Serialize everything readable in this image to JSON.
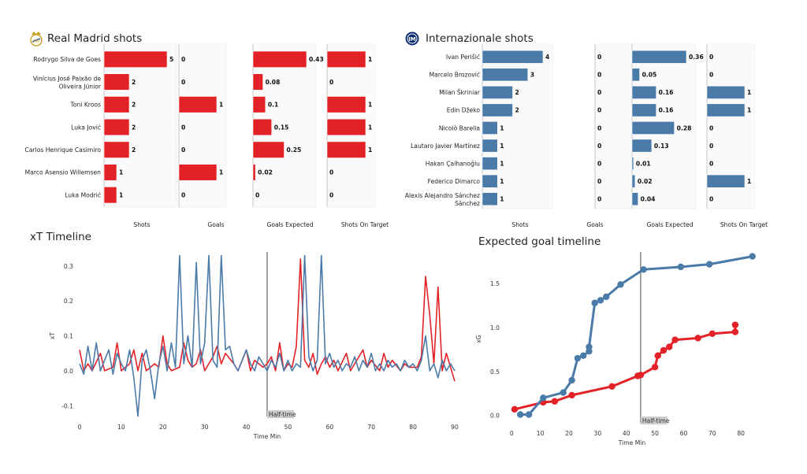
{
  "colors": {
    "real": "#e32228",
    "inter": "#4a7aa8",
    "vline": "#555555",
    "halftime_bg": "#cccccc"
  },
  "icons": {
    "real_logo": "real-madrid-crest-icon",
    "inter_logo": "inter-crest-icon"
  },
  "chart_data": [
    {
      "type": "bar",
      "orientation": "horizontal",
      "title": "Real Madrid shots",
      "columns": [
        "Shots",
        "Goals",
        "Goals Expected",
        "Shots On Target"
      ],
      "players": [
        [
          "Rodrygo Silva de Goes"
        ],
        [
          "Vinícius José Paixão de",
          "Oliveira Júnior"
        ],
        [
          "Toni Kroos"
        ],
        [
          "Luka Jović"
        ],
        [
          "Carlos Henrique Casimiro"
        ],
        [
          "Marco Asensio Willemsen"
        ],
        [
          "Luka Modrić"
        ]
      ],
      "series": [
        {
          "name": "Shots",
          "values": [
            5,
            2,
            2,
            2,
            2,
            1,
            1
          ],
          "labels": [
            "5",
            "2",
            "2",
            "2",
            "2",
            "1",
            "1"
          ]
        },
        {
          "name": "Goals",
          "values": [
            0,
            0,
            1,
            0,
            0,
            1,
            0
          ],
          "labels": [
            "0",
            "0",
            "1",
            "0",
            "0",
            "1",
            "0"
          ]
        },
        {
          "name": "Goals Expected",
          "values": [
            0.43,
            0.08,
            0.1,
            0.15,
            0.25,
            0.02,
            0
          ],
          "labels": [
            "0.43",
            "0.08",
            "0.1",
            "0.15",
            "0.25",
            "0.02",
            "0"
          ]
        },
        {
          "name": "Shots On Target",
          "values": [
            1,
            0,
            1,
            1,
            1,
            0,
            0
          ],
          "labels": [
            "1",
            "0",
            "1",
            "1",
            "1",
            "0",
            "0"
          ]
        }
      ]
    },
    {
      "type": "bar",
      "orientation": "horizontal",
      "title": "Internazionale shots",
      "columns": [
        "Shots",
        "Goals",
        "Goals Expected",
        "Shots On Target"
      ],
      "players": [
        [
          "Ivan Perišić"
        ],
        [
          "Marcelo Brozović"
        ],
        [
          "Milan Škriniar"
        ],
        [
          "Edin Džeko"
        ],
        [
          "Nicolò Barella"
        ],
        [
          "Lautaro Javier Martínez"
        ],
        [
          "Hakan Çalhanoğlu"
        ],
        [
          "Federico Dimarco"
        ],
        [
          "Alexis Alejandro Sánchez",
          "Sánchez"
        ]
      ],
      "series": [
        {
          "name": "Shots",
          "values": [
            4,
            3,
            2,
            2,
            1,
            1,
            1,
            1,
            1
          ],
          "labels": [
            "4",
            "3",
            "2",
            "2",
            "1",
            "1",
            "1",
            "1",
            "1"
          ]
        },
        {
          "name": "Goals",
          "values": [
            0,
            0,
            0,
            0,
            0,
            0,
            0,
            0,
            0
          ],
          "labels": [
            "0",
            "0",
            "0",
            "0",
            "0",
            "0",
            "0",
            "0",
            "0"
          ]
        },
        {
          "name": "Goals Expected",
          "values": [
            0.36,
            0.05,
            0.16,
            0.16,
            0.28,
            0.13,
            0.01,
            0.02,
            0.04
          ],
          "labels": [
            "0.36",
            "0.05",
            "0.16",
            "0.16",
            "0.28",
            "0.13",
            "0.01",
            "0.02",
            "0.04"
          ]
        },
        {
          "name": "Shots On Target",
          "values": [
            0,
            0,
            1,
            1,
            0,
            0,
            0,
            1,
            0
          ],
          "labels": [
            "0",
            "0",
            "1",
            "1",
            "0",
            "0",
            "0",
            "1",
            "0"
          ]
        }
      ]
    },
    {
      "type": "line",
      "title": "xT Timeline",
      "xlabel": "Time Min",
      "ylabel": "xT",
      "xlim": [
        0,
        90
      ],
      "ylim": [
        -0.14,
        0.34
      ],
      "xticks": [
        0,
        10,
        20,
        30,
        40,
        50,
        60,
        70,
        80,
        90
      ],
      "yticks": [
        -0.1,
        0.0,
        0.1,
        0.2,
        0.3
      ],
      "ytick_labels": [
        "-0.1",
        "0.0",
        "0.1",
        "0.2",
        "0.3"
      ],
      "annotation": {
        "x": 45,
        "text": "Half-time"
      },
      "series": [
        {
          "team": "real",
          "points": [
            [
              0,
              0.06
            ],
            [
              1,
              0.0
            ],
            [
              2,
              0.02
            ],
            [
              3,
              0.0
            ],
            [
              5,
              0.05
            ],
            [
              6,
              0.0
            ],
            [
              8,
              0.01
            ],
            [
              9,
              0.08
            ],
            [
              10,
              0.0
            ],
            [
              12,
              0.02
            ],
            [
              13,
              0.06
            ],
            [
              14,
              0.0
            ],
            [
              15,
              0.05
            ],
            [
              16,
              0.0
            ],
            [
              18,
              0.02
            ],
            [
              19,
              0.01
            ],
            [
              20,
              0.1
            ],
            [
              21,
              0.02
            ],
            [
              22,
              0.0
            ],
            [
              24,
              0.01
            ],
            [
              25,
              0.08
            ],
            [
              26,
              0.03
            ],
            [
              27,
              0.01
            ],
            [
              28,
              0.02
            ],
            [
              29,
              0.06
            ],
            [
              30,
              0.0
            ],
            [
              32,
              0.04
            ],
            [
              33,
              0.07
            ],
            [
              34,
              0.02
            ],
            [
              35,
              0.05
            ],
            [
              37,
              0.02
            ],
            [
              38,
              0.0
            ],
            [
              40,
              0.06
            ],
            [
              41,
              0.0
            ],
            [
              42,
              0.03
            ],
            [
              44,
              0.01
            ],
            [
              45,
              0.02
            ],
            [
              46,
              0.04
            ],
            [
              47,
              0.0
            ],
            [
              48,
              0.08
            ],
            [
              49,
              0.0
            ],
            [
              50,
              0.02
            ],
            [
              51,
              0.01
            ],
            [
              52,
              0.07
            ],
            [
              53,
              0.32
            ],
            [
              54,
              0.03
            ],
            [
              55,
              0.01
            ],
            [
              56,
              0.05
            ],
            [
              57,
              -0.01
            ],
            [
              58,
              0.02
            ],
            [
              59,
              0.04
            ],
            [
              60,
              0.01
            ],
            [
              61,
              0.03
            ],
            [
              62,
              0.0
            ],
            [
              64,
              0.05
            ],
            [
              65,
              0.0
            ],
            [
              66,
              0.02
            ],
            [
              68,
              0.06
            ],
            [
              69,
              0.01
            ],
            [
              70,
              0.03
            ],
            [
              72,
              0.0
            ],
            [
              73,
              0.05
            ],
            [
              74,
              0.01
            ],
            [
              75,
              0.03
            ],
            [
              77,
              0.0
            ],
            [
              78,
              0.02
            ],
            [
              79,
              0.01
            ],
            [
              81,
              0.01
            ],
            [
              82,
              0.04
            ],
            [
              83,
              0.27
            ],
            [
              84,
              0.16
            ],
            [
              85,
              0.02
            ],
            [
              86,
              0.24
            ],
            [
              87,
              0.0
            ],
            [
              88,
              0.05
            ],
            [
              89,
              0.01
            ],
            [
              90,
              -0.03
            ]
          ]
        },
        {
          "team": "inter",
          "points": [
            [
              0,
              0.02
            ],
            [
              1,
              -0.01
            ],
            [
              2,
              0.07
            ],
            [
              3,
              0.0
            ],
            [
              4,
              0.08
            ],
            [
              5,
              0.0
            ],
            [
              6,
              0.03
            ],
            [
              7,
              0.06
            ],
            [
              8,
              -0.01
            ],
            [
              9,
              0.05
            ],
            [
              10,
              0.02
            ],
            [
              11,
              0.0
            ],
            [
              12,
              0.06
            ],
            [
              13,
              -0.02
            ],
            [
              14,
              -0.13
            ],
            [
              15,
              0.03
            ],
            [
              16,
              0.06
            ],
            [
              17,
              0.0
            ],
            [
              18,
              -0.08
            ],
            [
              19,
              0.02
            ],
            [
              20,
              0.07
            ],
            [
              21,
              0.0
            ],
            [
              22,
              0.08
            ],
            [
              23,
              0.01
            ],
            [
              24,
              0.33
            ],
            [
              25,
              0.02
            ],
            [
              26,
              0.1
            ],
            [
              27,
              0.01
            ],
            [
              28,
              0.31
            ],
            [
              29,
              0.02
            ],
            [
              30,
              0.08
            ],
            [
              31,
              0.33
            ],
            [
              32,
              0.03
            ],
            [
              33,
              0.01
            ],
            [
              34,
              0.33
            ],
            [
              35,
              0.06
            ],
            [
              36,
              0.07
            ],
            [
              37,
              0.02
            ],
            [
              38,
              0.0
            ],
            [
              39,
              0.03
            ],
            [
              40,
              0.06
            ],
            [
              41,
              0.02
            ],
            [
              42,
              0.0
            ],
            [
              43,
              0.04
            ],
            [
              44,
              0.02
            ],
            [
              45,
              0.0
            ],
            [
              46,
              0.03
            ],
            [
              47,
              0.01
            ],
            [
              48,
              0.05
            ],
            [
              49,
              0.0
            ],
            [
              50,
              0.03
            ],
            [
              51,
              0.0
            ],
            [
              52,
              0.02
            ],
            [
              53,
              0.01
            ],
            [
              54,
              0.33
            ],
            [
              55,
              0.04
            ],
            [
              56,
              0.0
            ],
            [
              57,
              0.03
            ],
            [
              58,
              0.33
            ],
            [
              59,
              0.02
            ],
            [
              60,
              0.05
            ],
            [
              61,
              0.01
            ],
            [
              62,
              0.03
            ],
            [
              63,
              0.0
            ],
            [
              64,
              0.02
            ],
            [
              65,
              0.01
            ],
            [
              66,
              0.04
            ],
            [
              67,
              0.0
            ],
            [
              68,
              0.03
            ],
            [
              69,
              0.01
            ],
            [
              70,
              0.05
            ],
            [
              71,
              0.0
            ],
            [
              72,
              0.02
            ],
            [
              73,
              0.0
            ],
            [
              74,
              0.03
            ],
            [
              75,
              0.01
            ],
            [
              76,
              0.02
            ],
            [
              77,
              0.0
            ],
            [
              78,
              0.03
            ],
            [
              79,
              0.01
            ],
            [
              80,
              0.02
            ],
            [
              81,
              0.0
            ],
            [
              82,
              0.03
            ],
            [
              83,
              0.1
            ],
            [
              84,
              0.0
            ],
            [
              85,
              0.02
            ],
            [
              86,
              -0.02
            ],
            [
              87,
              0.03
            ],
            [
              88,
              0.0
            ],
            [
              89,
              0.02
            ],
            [
              90,
              0.0
            ]
          ]
        }
      ]
    },
    {
      "type": "line",
      "title": "Expected goal timeline",
      "xlabel": "Time Min",
      "ylabel": "xG",
      "xlim": [
        -2,
        86
      ],
      "ylim": [
        -0.12,
        1.86
      ],
      "xticks": [
        0,
        10,
        20,
        30,
        40,
        50,
        60,
        70,
        80
      ],
      "yticks": [
        0.0,
        0.5,
        1.0,
        1.5
      ],
      "ytick_labels": [
        "0.0",
        "0.5",
        "1.0",
        "1.5"
      ],
      "annotation": {
        "x": 45,
        "text": "Half-time"
      },
      "series": [
        {
          "team": "real",
          "points": [
            [
              1,
              0.07
            ],
            [
              11,
              0.15
            ],
            [
              15,
              0.16
            ],
            [
              21,
              0.23
            ],
            [
              35,
              0.33
            ],
            [
              44,
              0.45
            ],
            [
              45,
              0.46
            ],
            [
              50,
              0.55
            ],
            [
              51,
              0.68
            ],
            [
              53,
              0.74
            ],
            [
              55,
              0.78
            ],
            [
              57,
              0.86
            ],
            [
              65,
              0.88
            ],
            [
              70,
              0.93
            ],
            [
              78,
              0.95
            ],
            [
              78,
              1.03
            ]
          ]
        },
        {
          "team": "inter",
          "points": [
            [
              3,
              0.01
            ],
            [
              6,
              0.01
            ],
            [
              11,
              0.2
            ],
            [
              18,
              0.26
            ],
            [
              21,
              0.4
            ],
            [
              23,
              0.65
            ],
            [
              25,
              0.68
            ],
            [
              27,
              0.73
            ],
            [
              27,
              0.78
            ],
            [
              29,
              1.28
            ],
            [
              31,
              1.31
            ],
            [
              33,
              1.35
            ],
            [
              38,
              1.49
            ],
            [
              46,
              1.66
            ],
            [
              59,
              1.69
            ],
            [
              69,
              1.72
            ],
            [
              84,
              1.81
            ]
          ]
        }
      ]
    }
  ]
}
